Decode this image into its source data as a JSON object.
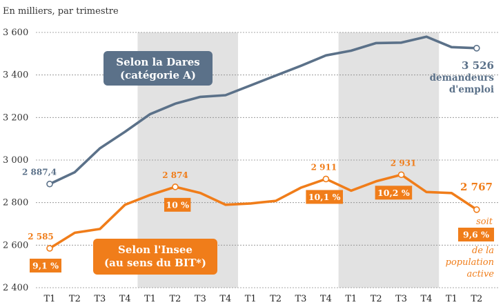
{
  "chart_data": {
    "type": "line",
    "subtitle": "En milliers, par trimestre",
    "ylim": [
      2400,
      3600
    ],
    "yticks": [
      2400,
      2600,
      2800,
      3000,
      3200,
      3400,
      3600
    ],
    "ytick_labels": [
      "2 400",
      "2 600",
      "2 800",
      "3 000",
      "3 200",
      "3 400",
      "3 600"
    ],
    "categories": [
      "T1",
      "T2",
      "T3",
      "T4",
      "T1",
      "T2",
      "T3",
      "T4",
      "T1",
      "T2",
      "T3",
      "T4",
      "T1",
      "T2",
      "T3",
      "T4",
      "T1",
      "T2"
    ],
    "shaded_years": [
      [
        4,
        7
      ],
      [
        12,
        15
      ]
    ],
    "series": [
      {
        "name": "Selon la Dares (catégorie A)",
        "color": "#5b7189",
        "values": [
          2887.4,
          2943,
          3055,
          3133,
          3216,
          3265,
          3297,
          3305,
          3351,
          3397,
          3443,
          3492,
          3514,
          3550,
          3552,
          3580,
          3531,
          3526
        ]
      },
      {
        "name": "Selon l'Insee (au sens du BIT*)",
        "color": "#f07d1a",
        "values": [
          2585,
          2658,
          2676,
          2790,
          2836,
          2874,
          2845,
          2790,
          2796,
          2808,
          2870,
          2911,
          2856,
          2900,
          2931,
          2850,
          2845,
          2767
        ]
      }
    ],
    "annotations": {
      "blue_start_label": "2 887,4",
      "blue_callout": [
        "Selon la Dares",
        "(catégorie A)"
      ],
      "blue_end_value": "3 526",
      "blue_end_text": [
        "demandeurs",
        "d'emploi"
      ],
      "orange_point_labels": [
        {
          "index": 0,
          "text": "2 585"
        },
        {
          "index": 5,
          "text": "2 874"
        },
        {
          "index": 11,
          "text": "2 911"
        },
        {
          "index": 14,
          "text": "2 931"
        }
      ],
      "orange_rate_boxes": [
        {
          "index": 0,
          "text": "9,1 %"
        },
        {
          "index": 5,
          "text": "10 %"
        },
        {
          "index": 11,
          "text": "10,1 %"
        },
        {
          "index": 14,
          "text": "10,2 %"
        }
      ],
      "orange_callout": [
        "Selon l'Insee",
        "(au sens du BIT*)"
      ],
      "orange_end_value": "2 767",
      "orange_end_rate": "9,6 %",
      "orange_end_text": [
        "soit",
        "de la",
        "population",
        "active"
      ]
    },
    "colors": {
      "blue": "#5b7189",
      "orange": "#f07d1a",
      "shade": "#e2e2e2",
      "grid": "#8a8a8a"
    }
  }
}
